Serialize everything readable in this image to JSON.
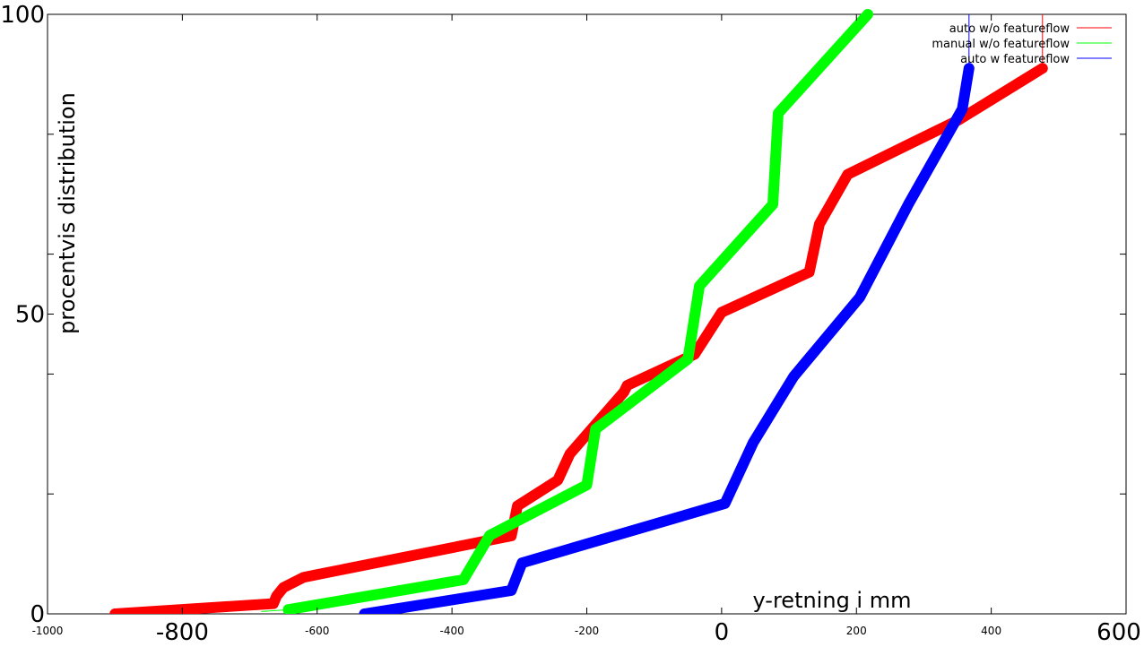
{
  "chart_data": {
    "type": "line",
    "title": "",
    "xlabel": "y-retning i mm",
    "ylabel": "procentvis distribution",
    "xlim": [
      -1000,
      600
    ],
    "ylim": [
      0,
      100
    ],
    "x_ticks": [
      {
        "value": -1000,
        "label": "-1000",
        "size": "small"
      },
      {
        "value": -800,
        "label": "-800",
        "size": "large"
      },
      {
        "value": -600,
        "label": "-600",
        "size": "small"
      },
      {
        "value": -400,
        "label": "-400",
        "size": "small"
      },
      {
        "value": -200,
        "label": "-200",
        "size": "small"
      },
      {
        "value": 0,
        "label": "0",
        "size": "large"
      },
      {
        "value": 200,
        "label": "200",
        "size": "small"
      },
      {
        "value": 400,
        "label": "400",
        "size": "small"
      },
      {
        "value": 600,
        "label": "600",
        "size": "large"
      }
    ],
    "y_ticks": [
      {
        "value": 0,
        "label": "0"
      },
      {
        "value": 20,
        "label": ""
      },
      {
        "value": 40,
        "label": ""
      },
      {
        "value": 50,
        "label": "50"
      },
      {
        "value": 60,
        "label": ""
      },
      {
        "value": 80,
        "label": ""
      },
      {
        "value": 100,
        "label": "100"
      }
    ],
    "grid": false,
    "legend_position": "top-right",
    "series": [
      {
        "name": "auto w/o featureflow",
        "color": "#ff0000",
        "x": [
          -900,
          -665,
          -660,
          -650,
          -620,
          -312,
          -303,
          -243,
          -225,
          -145,
          -140,
          -40,
          0,
          130,
          145,
          187,
          352,
          476
        ],
        "y": [
          0,
          1.7,
          3,
          4.4,
          6.1,
          13,
          18,
          22.3,
          26.7,
          37,
          38.1,
          43.3,
          50.3,
          57,
          65,
          73.3,
          82.4,
          91
        ]
      },
      {
        "name": "manual w/o featureflow",
        "color": "#00ff00",
        "x": [
          -643,
          -383,
          -344,
          -200,
          -187,
          -50,
          -33,
          76,
          84,
          217
        ],
        "y": [
          0.7,
          5.7,
          13.1,
          21.5,
          30.8,
          42.5,
          54.7,
          68.3,
          83.5,
          100
        ]
      },
      {
        "name": "auto w featureflow",
        "color": "#0000ff",
        "x": [
          -530,
          -312,
          -296,
          5,
          47,
          107,
          205,
          277,
          357,
          367
        ],
        "y": [
          0,
          3.9,
          8.5,
          18.4,
          28.6,
          39.6,
          52.8,
          68.3,
          84.2,
          91
        ]
      }
    ]
  }
}
